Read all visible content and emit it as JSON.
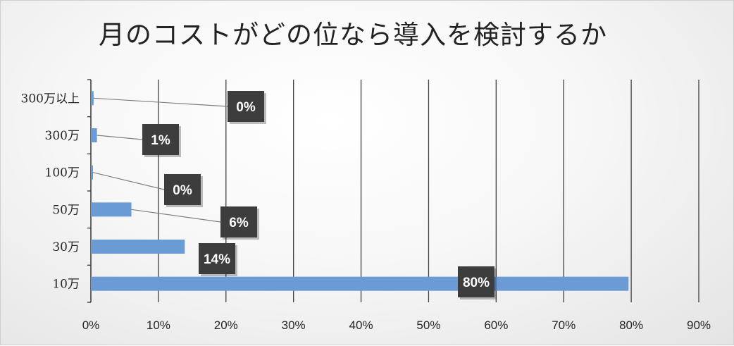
{
  "chart_data": {
    "type": "bar",
    "orientation": "horizontal",
    "title": "月のコストがどの位なら導入を検討するか",
    "categories": [
      "10万",
      "30万",
      "50万",
      "100万",
      "300万",
      "300万以上"
    ],
    "values": [
      0.796,
      0.139,
      0.06,
      0.003,
      0.009,
      0.004
    ],
    "data_labels": [
      "80%",
      "14%",
      "6%",
      "0%",
      "1%",
      "0%"
    ],
    "xlim": [
      0,
      0.9
    ],
    "x_ticks": [
      0,
      0.1,
      0.2,
      0.3,
      0.4,
      0.5,
      0.6,
      0.7,
      0.8,
      0.9
    ],
    "x_tick_labels": [
      "0%",
      "10%",
      "20%",
      "30%",
      "40%",
      "50%",
      "60%",
      "70%",
      "80%",
      "90%"
    ],
    "grid": "vertical",
    "legend": "none",
    "colors": {
      "bar": "#6A9BD4",
      "label_box": "#3D3D3D",
      "label_text": "#FFFFFF",
      "gridline": "#404040",
      "leader_line": "#808080"
    }
  }
}
